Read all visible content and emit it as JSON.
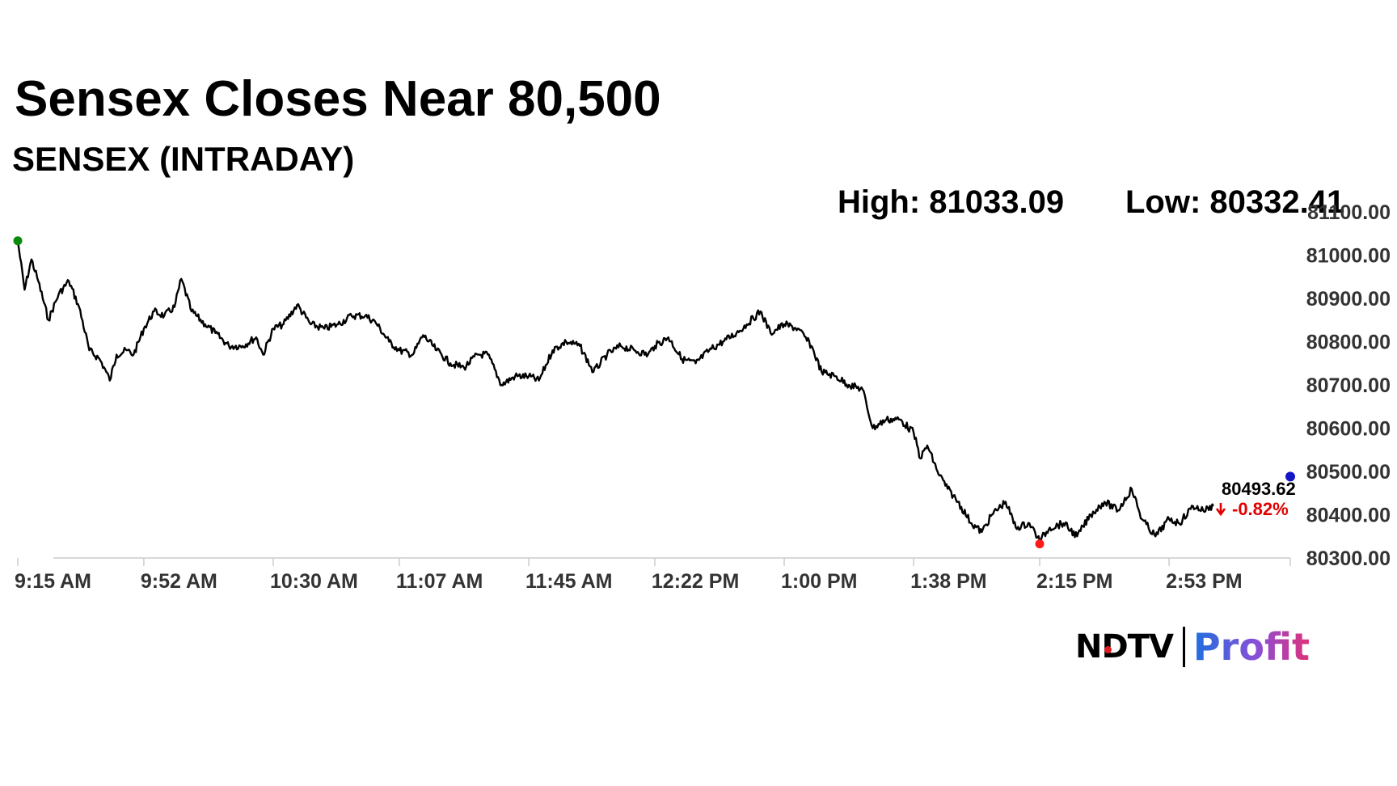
{
  "headline": "Sensex Closes Near 80,500",
  "subtitle": "SENSEX (INTRADAY)",
  "stats": {
    "high": "High: 81033.09",
    "low": "Low: 80332.41"
  },
  "logo": {
    "brand": "NDTV",
    "product": "Profit"
  },
  "colors": {
    "line": "#000000",
    "open_marker": "#0a8a0a",
    "low_marker": "#ff1a1a",
    "close_marker": "#1515c8",
    "change_negative": "#e00000",
    "axis": "#cccccc"
  },
  "chart_data": {
    "type": "line",
    "x_range": [
      "9:15 AM",
      "3:30 PM"
    ],
    "xticks": [
      "9:15 AM",
      "9:52 AM",
      "10:30 AM",
      "11:07 AM",
      "11:45 AM",
      "12:22 PM",
      "1:00 PM",
      "1:38 PM",
      "2:15 PM",
      "2:53 PM"
    ],
    "yticks": [
      "80300.00",
      "80400.00",
      "80500.00",
      "80600.00",
      "80700.00",
      "80800.00",
      "80900.00",
      "81000.00",
      "81100.00"
    ],
    "ylim": [
      80300,
      81100
    ],
    "grid": false,
    "last_value_label": "80493.62",
    "change_label": "-0.82%",
    "change_direction": "down",
    "series": [
      {
        "points": [
          [
            "9:15 AM",
            81033.09
          ],
          [
            "9:17 AM",
            80920
          ],
          [
            "9:19 AM",
            80990
          ],
          [
            "9:21 AM",
            80940
          ],
          [
            "9:24 AM",
            80850
          ],
          [
            "9:27 AM",
            80910
          ],
          [
            "9:30 AM",
            80940
          ],
          [
            "9:33 AM",
            80880
          ],
          [
            "9:36 AM",
            80780
          ],
          [
            "9:39 AM",
            80760
          ],
          [
            "9:41 AM",
            80730
          ],
          [
            "9:42 AM",
            80710
          ],
          [
            "9:44 AM",
            80770
          ],
          [
            "9:47 AM",
            80780
          ],
          [
            "9:49 AM",
            80770
          ],
          [
            "9:52 AM",
            80830
          ],
          [
            "9:55 AM",
            80870
          ],
          [
            "9:58 AM",
            80860
          ],
          [
            "10:01 AM",
            80880
          ],
          [
            "10:03 AM",
            80945
          ],
          [
            "10:06 AM",
            80870
          ],
          [
            "10:10 AM",
            80840
          ],
          [
            "10:13 AM",
            80820
          ],
          [
            "10:17 AM",
            80790
          ],
          [
            "10:21 AM",
            80790
          ],
          [
            "10:25 AM",
            80810
          ],
          [
            "10:27 AM",
            80770
          ],
          [
            "10:30 AM",
            80830
          ],
          [
            "10:33 AM",
            80840
          ],
          [
            "10:37 AM",
            80885
          ],
          [
            "10:41 AM",
            80840
          ],
          [
            "10:45 AM",
            80830
          ],
          [
            "10:49 AM",
            80840
          ],
          [
            "10:53 AM",
            80860
          ],
          [
            "10:57 AM",
            80860
          ],
          [
            "11:00 AM",
            80845
          ],
          [
            "11:04 AM",
            80800
          ],
          [
            "11:07 AM",
            80780
          ],
          [
            "11:11 AM",
            80770
          ],
          [
            "11:14 AM",
            80815
          ],
          [
            "11:18 AM",
            80780
          ],
          [
            "11:22 AM",
            80750
          ],
          [
            "11:26 AM",
            80740
          ],
          [
            "11:30 AM",
            80770
          ],
          [
            "11:33 AM",
            80770
          ],
          [
            "11:37 AM",
            80700
          ],
          [
            "11:41 AM",
            80720
          ],
          [
            "11:45 AM",
            80720
          ],
          [
            "11:48 AM",
            80710
          ],
          [
            "11:52 AM",
            80780
          ],
          [
            "11:56 AM",
            80800
          ],
          [
            "12:00 PM",
            80790
          ],
          [
            "12:04 PM",
            80730
          ],
          [
            "12:08 PM",
            80770
          ],
          [
            "12:12 PM",
            80790
          ],
          [
            "12:16 PM",
            80780
          ],
          [
            "12:20 PM",
            80770
          ],
          [
            "12:22 PM",
            80790
          ],
          [
            "12:26 PM",
            80810
          ],
          [
            "12:30 PM",
            80760
          ],
          [
            "12:34 PM",
            80750
          ],
          [
            "12:38 PM",
            80780
          ],
          [
            "12:42 PM",
            80800
          ],
          [
            "12:46 PM",
            80820
          ],
          [
            "12:49 PM",
            80840
          ],
          [
            "12:53 PM",
            80870
          ],
          [
            "12:56 PM",
            80820
          ],
          [
            "1:00 PM",
            80840
          ],
          [
            "1:04 PM",
            80830
          ],
          [
            "1:08 PM",
            80790
          ],
          [
            "1:11 PM",
            80730
          ],
          [
            "1:15 PM",
            80720
          ],
          [
            "1:19 PM",
            80700
          ],
          [
            "1:23 PM",
            80690
          ],
          [
            "1:26 PM",
            80600
          ],
          [
            "1:30 PM",
            80620
          ],
          [
            "1:34 PM",
            80620
          ],
          [
            "1:38 PM",
            80590
          ],
          [
            "1:40 PM",
            80530
          ],
          [
            "1:42 PM",
            80560
          ],
          [
            "1:45 PM",
            80500
          ],
          [
            "1:48 PM",
            80460
          ],
          [
            "1:51 PM",
            80430
          ],
          [
            "1:55 PM",
            80380
          ],
          [
            "1:58 PM",
            80360
          ],
          [
            "2:01 PM",
            80400
          ],
          [
            "2:05 PM",
            80430
          ],
          [
            "2:08 PM",
            80370
          ],
          [
            "2:12 PM",
            80380
          ],
          [
            "2:15 PM",
            80340
          ],
          [
            "2:18 PM",
            80370
          ],
          [
            "2:22 PM",
            80380
          ],
          [
            "2:26 PM",
            80350
          ],
          [
            "2:30 PM",
            80400
          ],
          [
            "2:34 PM",
            80430
          ],
          [
            "2:38 PM",
            80410
          ],
          [
            "2:42 PM",
            80460
          ],
          [
            "2:45 PM",
            80390
          ],
          [
            "2:49 PM",
            80350
          ],
          [
            "2:53 PM",
            80390
          ],
          [
            "2:56 PM",
            80380
          ],
          [
            "3:00 PM",
            80420
          ],
          [
            "3:03 PM",
            80410
          ],
          [
            "3:06 PM",
            80420
          ]
        ]
      }
    ]
  }
}
